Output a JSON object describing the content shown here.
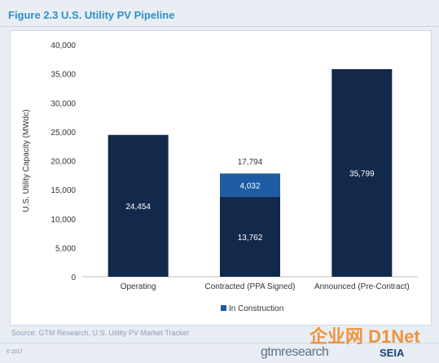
{
  "title": "Figure 2.3  U.S. Utility PV Pipeline",
  "source": "Source:  GTM Research, U.S. Utility PV Market Tracker",
  "copyright": "© 2017",
  "logos": {
    "gtm": "gtmresearch",
    "seia": "SEIA",
    "watermark": "企业网 D1Net"
  },
  "colors": {
    "bar": "#13294b",
    "construction": "#1d5ba3",
    "title": "#2f8fc9",
    "label": "#ffffff"
  },
  "chart_data": {
    "type": "bar",
    "stacked": true,
    "ylabel": "U.S. Utility Capacity (MWdc)",
    "ylim": [
      0,
      40000
    ],
    "yticks": [
      0,
      5000,
      10000,
      15000,
      20000,
      25000,
      30000,
      35000,
      40000
    ],
    "ytick_labels": [
      "0",
      "5,000",
      "10,000",
      "15,000",
      "20,000",
      "25,000",
      "30,000",
      "35,000",
      "40,000"
    ],
    "categories": [
      "Operating",
      "Contracted (PPA Signed)",
      "Announced (Pre-Contract)"
    ],
    "series": [
      {
        "values": [
          24454,
          13762,
          35799
        ],
        "labels": [
          "24,454",
          "13,762",
          "35,799"
        ]
      },
      {
        "name": "In Construction",
        "values": [
          0,
          4032,
          0
        ],
        "labels": [
          "",
          "4,032",
          ""
        ]
      }
    ],
    "totals": [
      24454,
      17794,
      35799
    ],
    "total_labels": [
      "",
      "17,794",
      ""
    ],
    "legend": "bottom",
    "grid": false
  }
}
